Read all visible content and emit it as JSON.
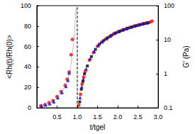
{
  "chart_data": {
    "type": "scatter",
    "x_label": "t/tgel",
    "y_label": "<Rh(t)/Rh(0)>",
    "y2_label": "G' (Pa)",
    "xlim": [
      0,
      3
    ],
    "xticks": [
      0.5,
      {
        "value": 1,
        "label": "1.0"
      },
      1.5,
      {
        "value": 2,
        "label": "2.0"
      },
      2.5,
      {
        "value": 3,
        "label": "3.0"
      }
    ],
    "ylim": [
      0,
      100
    ],
    "yticks": [
      0,
      20,
      40,
      60,
      80,
      100
    ],
    "y2lim": [
      0.1,
      100
    ],
    "y2ticks": [
      0.1,
      1,
      10,
      100
    ],
    "log": "y2",
    "series": [
      {
        "type": "line",
        "line_style": "dotted",
        "color": "#808080",
        "x": [
          0.1,
          0.3,
          0.5,
          0.7,
          0.8,
          0.85,
          0.9,
          0.93,
          0.95,
          0.97
        ],
        "values": [
          2,
          4,
          10,
          21,
          33,
          44,
          60,
          72,
          84,
          98
        ]
      },
      {
        "type": "line",
        "line_style": "dashed",
        "color": "#000000",
        "x": [
          1,
          1
        ],
        "values": [
          0,
          100
        ]
      },
      {
        "type": "scatter",
        "marker": "circle",
        "color": "#ff0000",
        "x": [
          0.1,
          0.2,
          0.3,
          0.4,
          0.5,
          0.6,
          0.7,
          0.75,
          0.8,
          0.85,
          0.88
        ],
        "values": [
          2,
          3,
          5,
          7,
          11,
          16,
          22,
          28,
          35,
          52,
          67
        ]
      },
      {
        "type": "scatter",
        "marker": "triangle",
        "color": "#0000ff",
        "x": [
          0.12,
          0.22,
          0.32,
          0.42,
          0.52,
          0.62,
          0.72,
          0.77,
          0.8
        ],
        "values": [
          2,
          3,
          4,
          6,
          10,
          15,
          21,
          27,
          34
        ]
      },
      {
        "type": "scatter",
        "marker": "circle",
        "color": "#ff0000",
        "axis": "y2",
        "x": [
          1.04,
          1.08,
          1.12,
          1.16,
          1.2,
          1.3,
          1.4,
          1.5,
          1.6,
          1.7,
          1.8,
          1.9,
          2.0,
          2.1,
          2.2,
          2.3,
          2.4,
          2.5,
          2.6,
          2.7,
          2.8,
          2.85
        ],
        "values": [
          0.12,
          0.25,
          0.5,
          0.8,
          1.2,
          2.5,
          4.2,
          6.5,
          8.5,
          10.5,
          12.5,
          15,
          17,
          19,
          21,
          23,
          25,
          27,
          29,
          31,
          33,
          35
        ]
      },
      {
        "type": "scatter",
        "marker": "rect",
        "color": "#000000",
        "axis": "y2",
        "x": [
          1.06,
          1.1,
          1.14,
          1.18,
          1.25,
          1.35,
          1.45,
          1.55,
          1.65,
          1.75,
          1.85,
          1.95,
          2.05,
          2.15,
          2.25,
          2.35,
          2.45,
          2.55,
          2.65,
          2.75
        ],
        "values": [
          0.15,
          0.35,
          0.6,
          1.0,
          1.7,
          3.2,
          5.2,
          7.4,
          9.4,
          11.4,
          13.5,
          15.8,
          17.8,
          19.8,
          21.8,
          23.8,
          25.8,
          27.8,
          29.8,
          31.5
        ]
      },
      {
        "type": "scatter",
        "marker": "triangle",
        "color": "#0000ff",
        "axis": "y2",
        "x": [
          1.07,
          1.11,
          1.15,
          1.22,
          1.32,
          1.42,
          1.52,
          1.62,
          1.72,
          1.82,
          1.92,
          2.02,
          2.12,
          2.22,
          2.32,
          2.42,
          2.52,
          2.62,
          2.72
        ],
        "values": [
          0.2,
          0.42,
          0.7,
          1.4,
          2.8,
          4.6,
          6.8,
          8.8,
          10.8,
          13,
          15.4,
          17.4,
          19.4,
          21.4,
          23.4,
          25.4,
          27.4,
          29.4,
          31.2
        ]
      }
    ]
  }
}
